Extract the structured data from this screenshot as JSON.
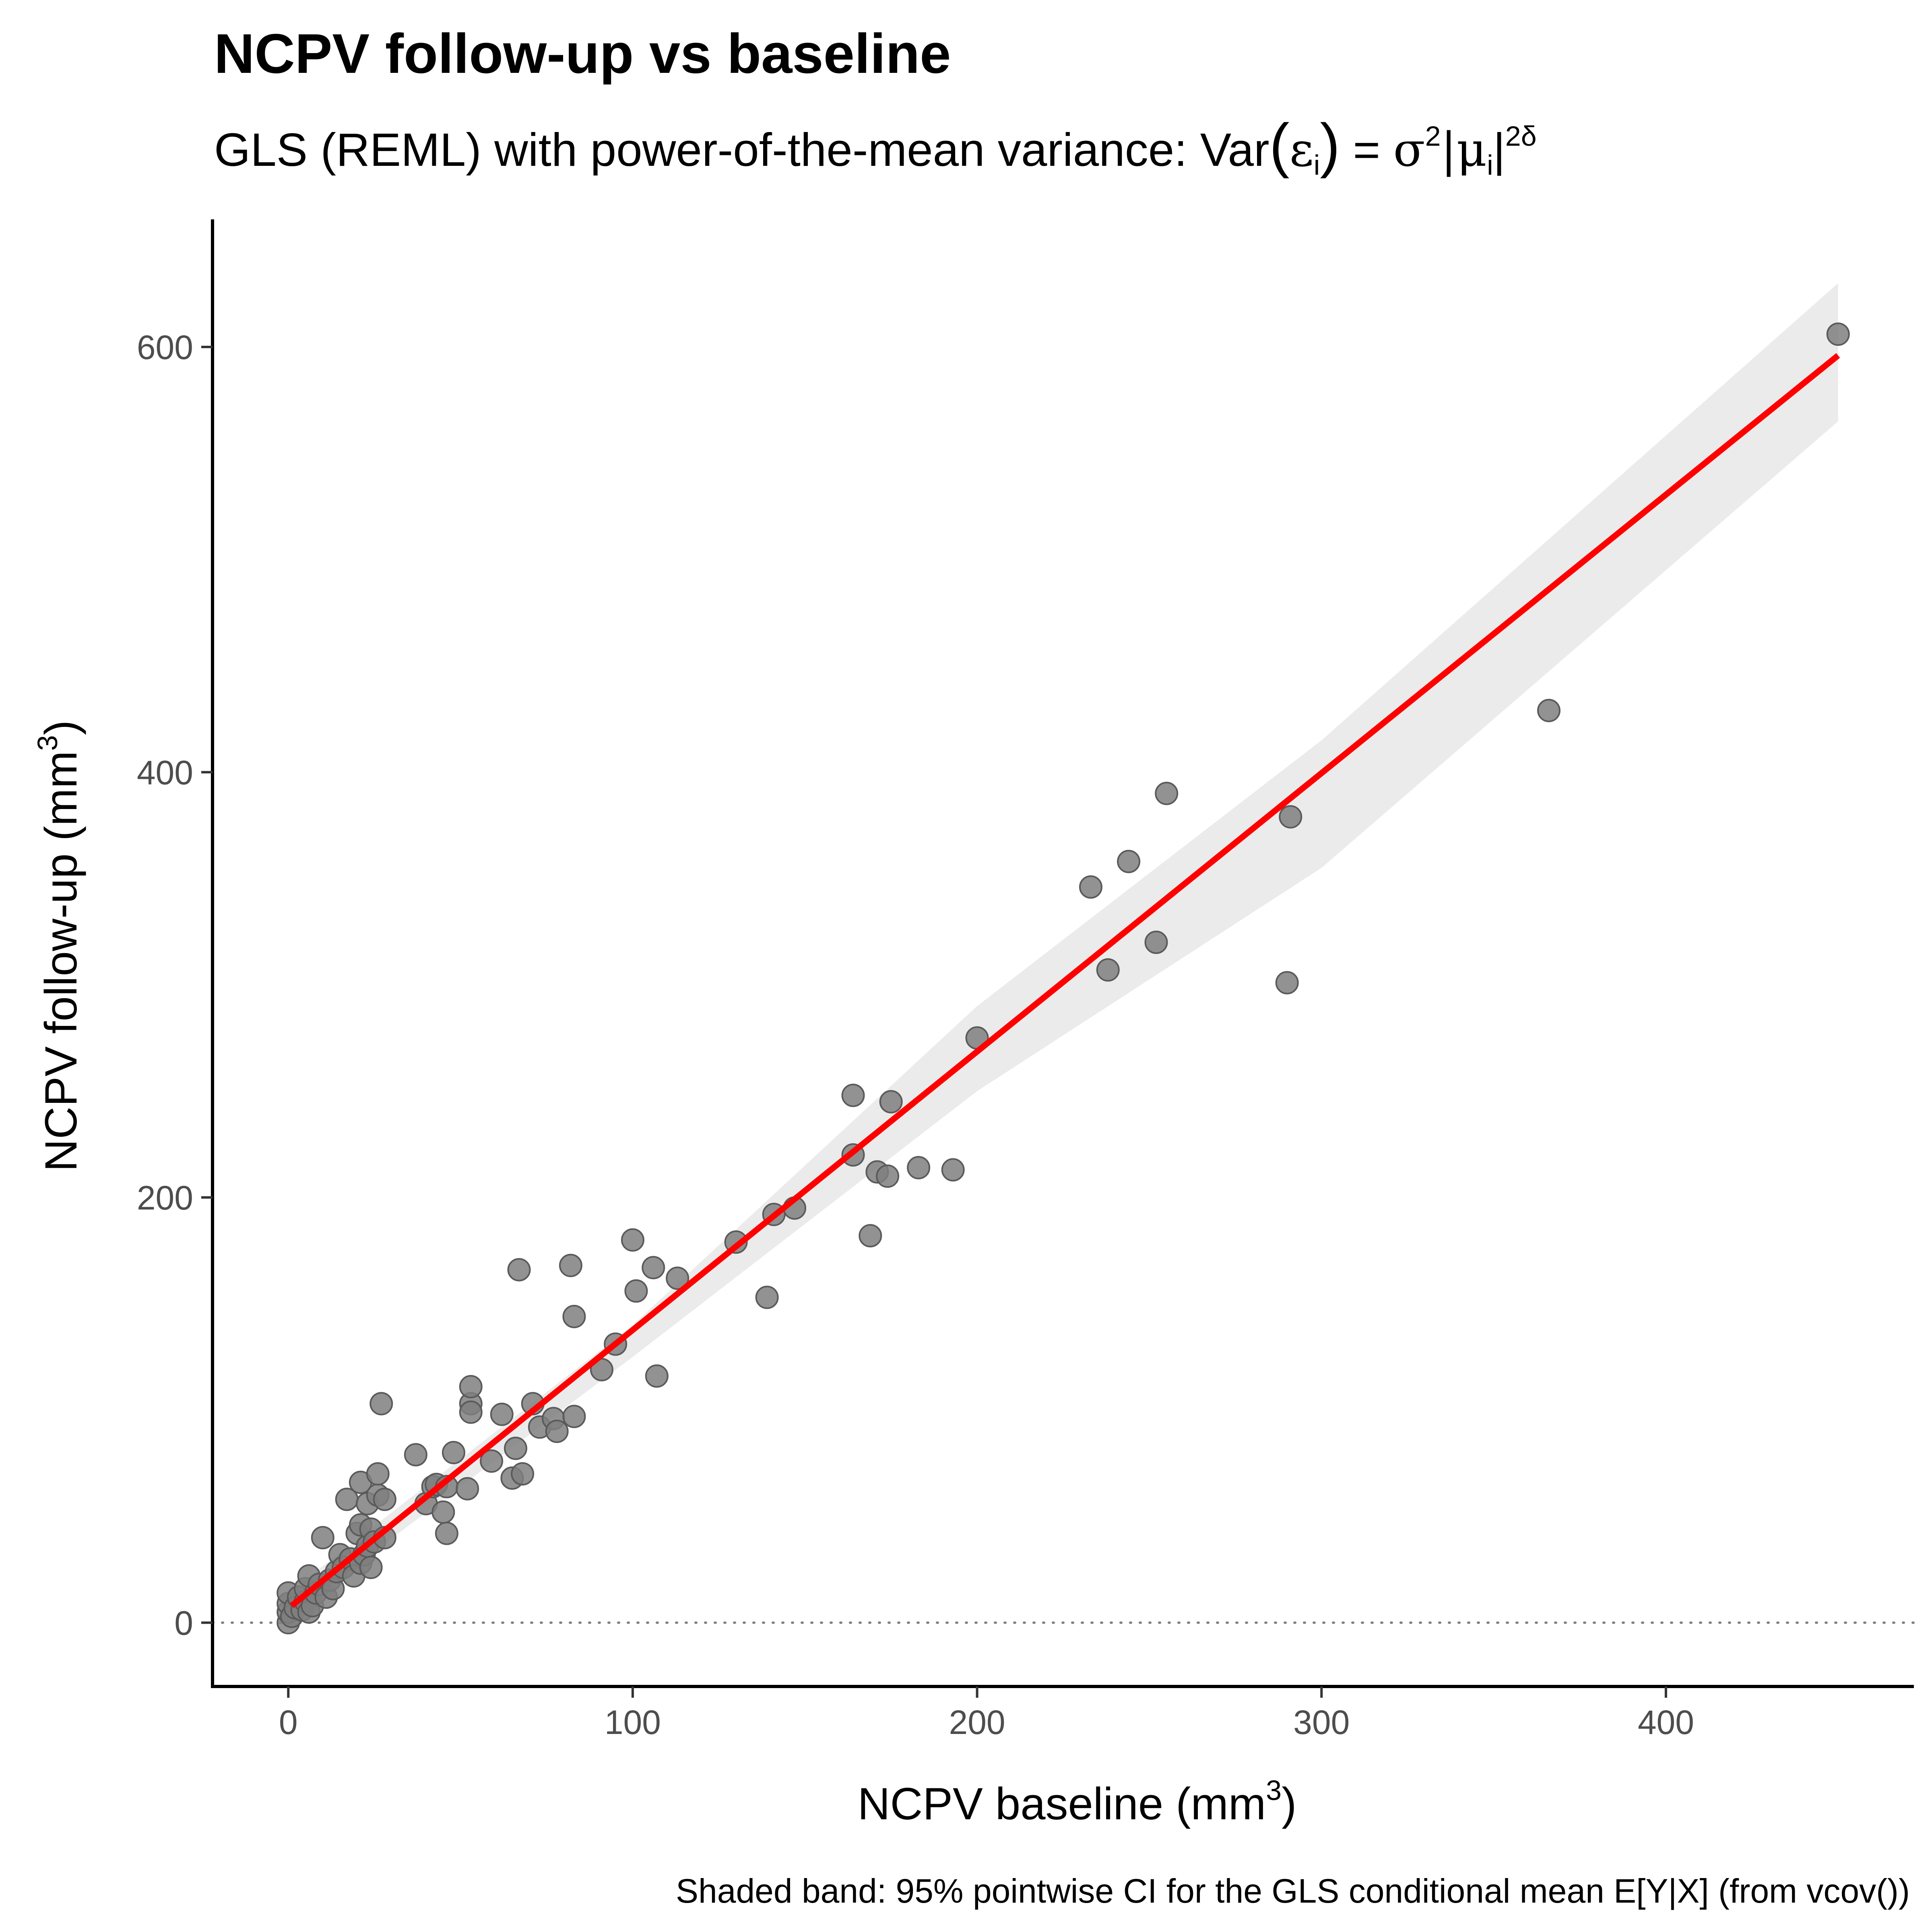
{
  "chart_data": {
    "type": "scatter",
    "title": "NCPV follow-up vs baseline",
    "subtitle": {
      "prefix": "GLS (REML) with power-of-the-mean variance:  Var",
      "eps": "ε",
      "sub_i": "i",
      "equals": " = ",
      "sigma": "σ",
      "sq": "2",
      "mu_open": "|μ",
      "mu_close": "|",
      "exp": "2δ"
    },
    "xlabel": {
      "text": "NCPV baseline (mm",
      "sup": "3",
      "close": ")"
    },
    "ylabel": {
      "text": "NCPV follow-up (mm",
      "sup": "3",
      "close": ")"
    },
    "caption": "Shaded band: 95% pointwise CI for the GLS conditional mean E[Y|X] (from vcov())",
    "xlim": [
      -22,
      472
    ],
    "ylim": [
      -30,
      660
    ],
    "xticks": [
      0,
      100,
      200,
      300,
      400
    ],
    "yticks": [
      0,
      200,
      400,
      600
    ],
    "grid": false,
    "reference_line": {
      "y": 0,
      "style": "dotted"
    },
    "colors": {
      "points": "#7f7f7f",
      "fit": "#ff0000",
      "band": "#ebebeb",
      "axis": "#000000",
      "ref": "#7f7f7f"
    },
    "fit": {
      "x": [
        1,
        450
      ],
      "y": [
        8,
        596
      ]
    },
    "band": {
      "x": [
        0,
        100,
        200,
        300,
        450
      ],
      "lower": [
        3,
        125,
        250,
        355,
        565
      ],
      "upper": [
        14,
        140,
        290,
        415,
        630
      ]
    },
    "series": [
      {
        "points": [
          [
            0,
            0
          ],
          [
            0,
            5
          ],
          [
            0,
            9
          ],
          [
            0,
            14
          ],
          [
            1,
            3
          ],
          [
            2,
            7
          ],
          [
            3,
            12
          ],
          [
            4,
            6
          ],
          [
            5,
            10
          ],
          [
            5,
            16
          ],
          [
            6,
            22
          ],
          [
            6,
            5
          ],
          [
            7,
            8
          ],
          [
            8,
            14
          ],
          [
            9,
            18
          ],
          [
            10,
            40
          ],
          [
            11,
            12
          ],
          [
            12,
            20
          ],
          [
            13,
            16
          ],
          [
            14,
            24
          ],
          [
            15,
            32
          ],
          [
            16,
            26
          ],
          [
            17,
            58
          ],
          [
            18,
            30
          ],
          [
            19,
            22
          ],
          [
            20,
            42
          ],
          [
            21,
            28
          ],
          [
            21,
            46
          ],
          [
            21,
            66
          ],
          [
            22,
            32
          ],
          [
            23,
            36
          ],
          [
            23,
            56
          ],
          [
            24,
            44
          ],
          [
            24,
            26
          ],
          [
            25,
            38
          ],
          [
            26,
            60
          ],
          [
            26,
            70
          ],
          [
            27,
            103
          ],
          [
            28,
            58
          ],
          [
            28,
            40
          ],
          [
            37,
            79
          ],
          [
            40,
            56
          ],
          [
            42,
            64
          ],
          [
            43,
            65
          ],
          [
            45,
            52
          ],
          [
            46,
            42
          ],
          [
            46,
            64
          ],
          [
            48,
            80
          ],
          [
            52,
            63
          ],
          [
            53,
            103
          ],
          [
            53,
            111
          ],
          [
            53,
            99
          ],
          [
            59,
            76
          ],
          [
            62,
            98
          ],
          [
            65,
            68
          ],
          [
            66,
            82
          ],
          [
            67,
            166
          ],
          [
            68,
            70
          ],
          [
            71,
            103
          ],
          [
            73,
            92
          ],
          [
            77,
            96
          ],
          [
            78,
            90
          ],
          [
            82,
            168
          ],
          [
            83,
            144
          ],
          [
            83,
            97
          ],
          [
            91,
            119
          ],
          [
            95,
            131
          ],
          [
            100,
            180
          ],
          [
            101,
            156
          ],
          [
            106,
            167
          ],
          [
            107,
            116
          ],
          [
            113,
            162
          ],
          [
            130,
            179
          ],
          [
            139,
            153
          ],
          [
            141,
            192
          ],
          [
            147,
            195
          ],
          [
            164,
            248
          ],
          [
            164,
            220
          ],
          [
            169,
            182
          ],
          [
            171,
            212
          ],
          [
            174,
            210
          ],
          [
            175,
            245
          ],
          [
            183,
            214
          ],
          [
            193,
            213
          ],
          [
            200,
            275
          ],
          [
            233,
            346
          ],
          [
            238,
            307
          ],
          [
            244,
            358
          ],
          [
            252,
            320
          ],
          [
            255,
            390
          ],
          [
            290,
            301
          ],
          [
            291,
            379
          ],
          [
            366,
            429
          ],
          [
            450,
            606
          ]
        ]
      }
    ]
  }
}
